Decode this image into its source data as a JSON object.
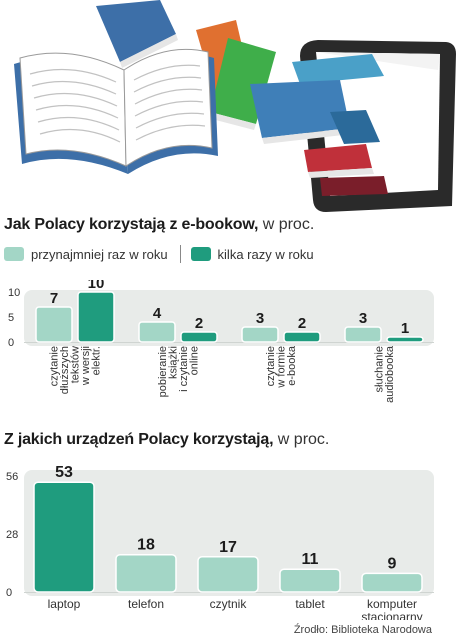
{
  "colors": {
    "light": "#a3d6c6",
    "dark": "#1f9c7e",
    "panel": "#e8ebe9",
    "text": "#1c1c1c"
  },
  "illustration": {
    "icons": [
      "open-book-icon",
      "stacked-books-icon",
      "tablet-ereader-icon"
    ]
  },
  "chart1": {
    "title": "Jak Polacy korzystają z e-bookow,",
    "unit": " w proc.",
    "legend": [
      {
        "name": "przynajmniej raz w roku",
        "color": "#a3d6c6"
      },
      {
        "name": "kilka razy w roku",
        "color": "#1f9c7e"
      }
    ]
  },
  "chart2": {
    "title": "Z jakich urządzeń Polacy korzystają,",
    "unit": " w proc."
  },
  "source": "Źrodło: Biblioteka Narodowa",
  "chart_data": [
    {
      "type": "bar",
      "title": "Jak Polacy korzystają z e-bookow, w proc.",
      "categories": [
        [
          "czytanie",
          "dłuższych",
          "tekstów",
          "w wersji",
          "elektr."
        ],
        [
          "pobieranie",
          "książki",
          "i czytanie",
          "online"
        ],
        [
          "czytanie",
          "w formie",
          "e-booka"
        ],
        [
          "słuchanie",
          "audiobooka"
        ]
      ],
      "series": [
        {
          "name": "przynajmniej raz w roku",
          "values": [
            7,
            4,
            3,
            3
          ]
        },
        {
          "name": "kilka razy w roku",
          "values": [
            10,
            2,
            2,
            1
          ]
        }
      ],
      "yticks": [
        "10",
        "5",
        "0"
      ],
      "ylim": [
        0,
        10
      ],
      "legend": "top-left",
      "grid": false
    },
    {
      "type": "bar",
      "title": "Z jakich urządzeń Polacy korzystają, w proc.",
      "categories": [
        "laptop",
        "telefon",
        "czytnik",
        "tablet",
        [
          "komputer",
          "stacjonarny"
        ]
      ],
      "values": [
        53,
        18,
        17,
        11,
        9
      ],
      "highlight_index": 0,
      "yticks": [
        "56",
        "28",
        "0"
      ],
      "ylim": [
        0,
        56
      ],
      "grid": false
    }
  ]
}
